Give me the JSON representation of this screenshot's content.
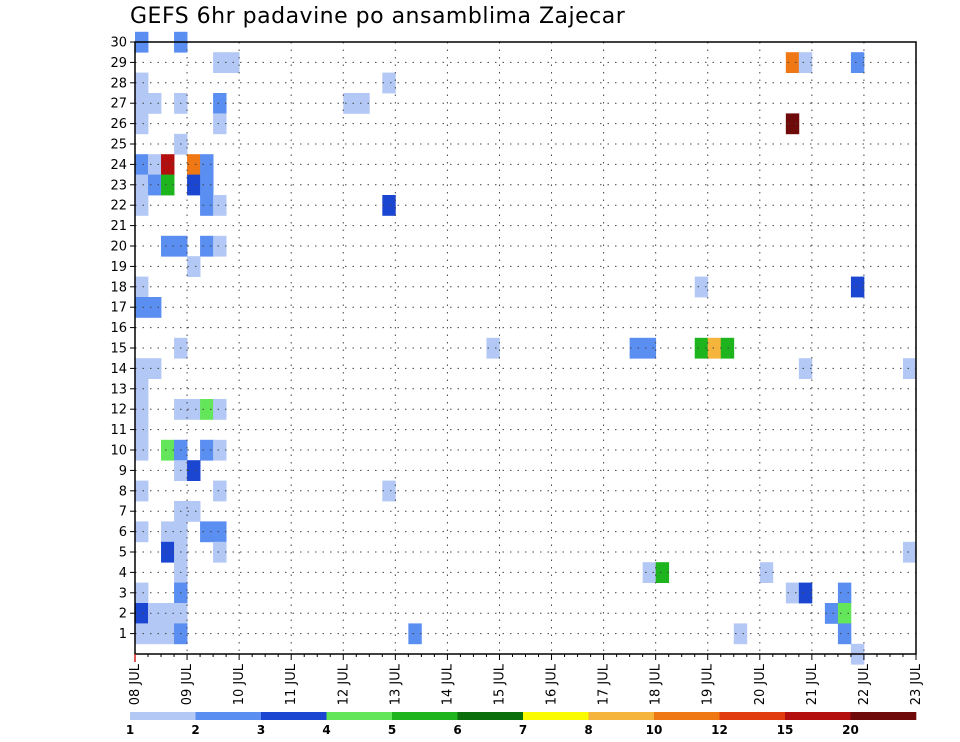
{
  "chart_data": {
    "type": "heatmap",
    "title": "GEFS 6hr padavine po ansamblima Zajecar",
    "xlabel": "",
    "ylabel": "",
    "x_ticks": [
      "08 JUL",
      "09 JUL",
      "10 JUL",
      "11 JUL",
      "12 JUL",
      "13 JUL",
      "14 JUL",
      "15 JUL",
      "16 JUL",
      "17 JUL",
      "18 JUL",
      "19 JUL",
      "20 JUL",
      "21 JUL",
      "22 JUL",
      "23 JUL"
    ],
    "y_ticks": [
      "1",
      "2",
      "3",
      "4",
      "5",
      "6",
      "7",
      "8",
      "9",
      "10",
      "11",
      "12",
      "13",
      "14",
      "15",
      "16",
      "17",
      "18",
      "19",
      "20",
      "21",
      "22",
      "23",
      "24",
      "25",
      "26",
      "27",
      "28",
      "29",
      "30"
    ],
    "x_range_days": [
      0,
      15
    ],
    "y_range": [
      0,
      30
    ],
    "step_hours": 6,
    "grid": "dotted",
    "colorbar": {
      "labels": [
        "1",
        "2",
        "3",
        "4",
        "5",
        "6",
        "7",
        "8",
        "10",
        "12",
        "15",
        "20"
      ],
      "colors": [
        "#b4c8f5",
        "#5a8ef0",
        "#1a46d2",
        "#64e65a",
        "#1eb41e",
        "#0a6e0a",
        "#fafa00",
        "#f5b43c",
        "#f07814",
        "#e13c0f",
        "#b40f0f",
        "#6e0a0a"
      ],
      "placement": "bottom"
    },
    "cells": [
      {
        "day": 0.0,
        "member": 30,
        "value": 2
      },
      {
        "day": 0.75,
        "member": 30,
        "value": 2
      },
      {
        "day": 1.5,
        "member": 29,
        "value": 1
      },
      {
        "day": 1.75,
        "member": 29,
        "value": 1
      },
      {
        "day": 12.5,
        "member": 29,
        "value": 10
      },
      {
        "day": 12.75,
        "member": 29,
        "value": 1
      },
      {
        "day": 13.75,
        "member": 29,
        "value": 2
      },
      {
        "day": 0.0,
        "member": 28,
        "value": 1
      },
      {
        "day": 4.75,
        "member": 28,
        "value": 1
      },
      {
        "day": 0.0,
        "member": 27,
        "value": 1
      },
      {
        "day": 0.25,
        "member": 27,
        "value": 1
      },
      {
        "day": 0.75,
        "member": 27,
        "value": 1
      },
      {
        "day": 1.5,
        "member": 27,
        "value": 2
      },
      {
        "day": 4.0,
        "member": 27,
        "value": 1
      },
      {
        "day": 4.25,
        "member": 27,
        "value": 1
      },
      {
        "day": 0.0,
        "member": 26,
        "value": 1
      },
      {
        "day": 1.5,
        "member": 26,
        "value": 1
      },
      {
        "day": 12.5,
        "member": 26,
        "value": 20
      },
      {
        "day": 0.75,
        "member": 25,
        "value": 1
      },
      {
        "day": 0.0,
        "member": 24,
        "value": 2
      },
      {
        "day": 0.25,
        "member": 24,
        "value": 1
      },
      {
        "day": 0.5,
        "member": 24,
        "value": 15
      },
      {
        "day": 1.0,
        "member": 24,
        "value": 10
      },
      {
        "day": 1.25,
        "member": 24,
        "value": 2
      },
      {
        "day": 0.0,
        "member": 23,
        "value": 1
      },
      {
        "day": 0.25,
        "member": 23,
        "value": 2
      },
      {
        "day": 0.5,
        "member": 23,
        "value": 5
      },
      {
        "day": 1.0,
        "member": 23,
        "value": 3
      },
      {
        "day": 1.25,
        "member": 23,
        "value": 2
      },
      {
        "day": 0.0,
        "member": 22,
        "value": 1
      },
      {
        "day": 1.25,
        "member": 22,
        "value": 2
      },
      {
        "day": 1.5,
        "member": 22,
        "value": 1
      },
      {
        "day": 4.75,
        "member": 22,
        "value": 3
      },
      {
        "day": 0.5,
        "member": 20,
        "value": 2
      },
      {
        "day": 0.75,
        "member": 20,
        "value": 2
      },
      {
        "day": 1.25,
        "member": 20,
        "value": 2
      },
      {
        "day": 1.5,
        "member": 20,
        "value": 1
      },
      {
        "day": 1.0,
        "member": 19,
        "value": 1
      },
      {
        "day": 0.0,
        "member": 18,
        "value": 1
      },
      {
        "day": 10.75,
        "member": 18,
        "value": 1
      },
      {
        "day": 13.75,
        "member": 18,
        "value": 3
      },
      {
        "day": 0.0,
        "member": 17,
        "value": 2
      },
      {
        "day": 0.25,
        "member": 17,
        "value": 2
      },
      {
        "day": 0.75,
        "member": 15,
        "value": 1
      },
      {
        "day": 6.75,
        "member": 15,
        "value": 1
      },
      {
        "day": 9.5,
        "member": 15,
        "value": 2
      },
      {
        "day": 9.75,
        "member": 15,
        "value": 2
      },
      {
        "day": 10.75,
        "member": 15,
        "value": 5
      },
      {
        "day": 11.0,
        "member": 15,
        "value": 8
      },
      {
        "day": 11.25,
        "member": 15,
        "value": 5
      },
      {
        "day": 0.0,
        "member": 14,
        "value": 1
      },
      {
        "day": 0.25,
        "member": 14,
        "value": 1
      },
      {
        "day": 12.75,
        "member": 14,
        "value": 1
      },
      {
        "day": 14.75,
        "member": 14,
        "value": 1
      },
      {
        "day": 0.0,
        "member": 13,
        "value": 1
      },
      {
        "day": 0.0,
        "member": 12,
        "value": 1
      },
      {
        "day": 0.75,
        "member": 12,
        "value": 1
      },
      {
        "day": 1.0,
        "member": 12,
        "value": 1
      },
      {
        "day": 1.25,
        "member": 12,
        "value": 4
      },
      {
        "day": 1.5,
        "member": 12,
        "value": 1
      },
      {
        "day": 0.0,
        "member": 11,
        "value": 1
      },
      {
        "day": 0.0,
        "member": 10,
        "value": 1
      },
      {
        "day": 0.5,
        "member": 10,
        "value": 4
      },
      {
        "day": 0.75,
        "member": 10,
        "value": 2
      },
      {
        "day": 1.25,
        "member": 10,
        "value": 2
      },
      {
        "day": 1.5,
        "member": 10,
        "value": 1
      },
      {
        "day": 0.75,
        "member": 9,
        "value": 1
      },
      {
        "day": 1.0,
        "member": 9,
        "value": 3
      },
      {
        "day": 0.0,
        "member": 8,
        "value": 1
      },
      {
        "day": 1.5,
        "member": 8,
        "value": 1
      },
      {
        "day": 4.75,
        "member": 8,
        "value": 1
      },
      {
        "day": 0.75,
        "member": 7,
        "value": 1
      },
      {
        "day": 1.0,
        "member": 7,
        "value": 1
      },
      {
        "day": 0.0,
        "member": 6,
        "value": 1
      },
      {
        "day": 0.5,
        "member": 6,
        "value": 1
      },
      {
        "day": 0.75,
        "member": 6,
        "value": 1
      },
      {
        "day": 1.25,
        "member": 6,
        "value": 2
      },
      {
        "day": 1.5,
        "member": 6,
        "value": 2
      },
      {
        "day": 0.5,
        "member": 5,
        "value": 3
      },
      {
        "day": 0.75,
        "member": 5,
        "value": 1
      },
      {
        "day": 1.5,
        "member": 5,
        "value": 1
      },
      {
        "day": 14.75,
        "member": 5,
        "value": 1
      },
      {
        "day": 0.75,
        "member": 4,
        "value": 1
      },
      {
        "day": 9.75,
        "member": 4,
        "value": 1
      },
      {
        "day": 10.0,
        "member": 4,
        "value": 5
      },
      {
        "day": 12.0,
        "member": 4,
        "value": 1
      },
      {
        "day": 0.0,
        "member": 3,
        "value": 1
      },
      {
        "day": 0.75,
        "member": 3,
        "value": 2
      },
      {
        "day": 12.5,
        "member": 3,
        "value": 1
      },
      {
        "day": 12.75,
        "member": 3,
        "value": 3
      },
      {
        "day": 13.5,
        "member": 3,
        "value": 2
      },
      {
        "day": 0.0,
        "member": 2,
        "value": 3
      },
      {
        "day": 0.25,
        "member": 2,
        "value": 1
      },
      {
        "day": 0.5,
        "member": 2,
        "value": 1
      },
      {
        "day": 0.75,
        "member": 2,
        "value": 1
      },
      {
        "day": 13.25,
        "member": 2,
        "value": 2
      },
      {
        "day": 13.5,
        "member": 2,
        "value": 4
      },
      {
        "day": 0.0,
        "member": 1,
        "value": 1
      },
      {
        "day": 0.25,
        "member": 1,
        "value": 1
      },
      {
        "day": 0.5,
        "member": 1,
        "value": 1
      },
      {
        "day": 0.75,
        "member": 1,
        "value": 2
      },
      {
        "day": 5.25,
        "member": 1,
        "value": 2
      },
      {
        "day": 11.5,
        "member": 1,
        "value": 1
      },
      {
        "day": 13.5,
        "member": 1,
        "value": 2
      },
      {
        "day": 13.75,
        "member": 0,
        "value": 1
      }
    ]
  }
}
